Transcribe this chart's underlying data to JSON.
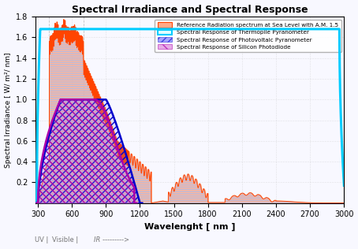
{
  "title": "Spectral Irradiance and Spectral Response",
  "xlabel": "Wavelenght [ nm ]",
  "ylabel": "Spectral Irradiance [ W/ m²/ nm]",
  "xlim": [
    280,
    3000
  ],
  "ylim": [
    0,
    1.8
  ],
  "yticks": [
    0.2,
    0.4,
    0.6,
    0.8,
    1.0,
    1.2,
    1.4,
    1.6,
    1.8
  ],
  "xticks": [
    300,
    600,
    900,
    1200,
    1500,
    1800,
    2100,
    2400,
    2700,
    3000
  ],
  "uv_label": "UV |",
  "visible_label": "Visible |",
  "ir_label": "IR --------->",
  "legend_labels": [
    "Reference Radiation spectrum at Sea Level with A.M. 1.5",
    "Spectral Response of Thermopile Pyranometer",
    "Spectral Response of Photovoltaic Pyranometer",
    "Spectral Response of Silicon Photodiode"
  ],
  "solar_color": "#FF4400",
  "solar_fill": "#FFAA88",
  "solar_hatch_color": "#BBBBDD",
  "thermopile_color": "#00CCFF",
  "pv_color": "#0000CC",
  "pv_fill": "#6666FF",
  "si_color": "#AA00AA",
  "si_fill": "#DD88DD",
  "background": "#F8F8FF",
  "vline_color": "#AAAAAA",
  "grid_color": "#CCCCCC"
}
